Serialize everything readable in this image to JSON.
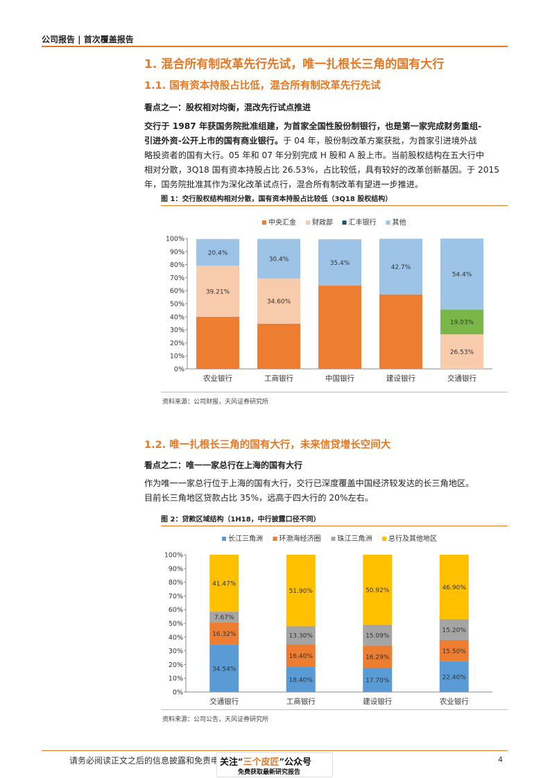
{
  "header": {
    "text": "公司报告 | 首次覆盖报告"
  },
  "section1": {
    "title": "1. 混合所有制改革先行先试，唯一扎根长三角的国有大行",
    "sub1": {
      "title": "1.1. 国有资本持股占比低，混合所有制改革先行先试",
      "point": "看点之一：股权相对均衡，混改先行试点推进",
      "lines": [
        {
          "bold": "交行于 1987 年获国务院批准组建，为首家全国性股份制银行，也是第一家完成财务重组-",
          "rest": ""
        },
        {
          "bold": "引进外资-公开上市的国有商业银行。",
          "rest": "于 04 年，股份制改革方案获批，为首家引进境外战"
        },
        {
          "bold": "",
          "rest": "略投资者的国有大行。05 年和 07 年分别完成 H 股和 A 股上市。当前股权结构在五大行中"
        },
        {
          "bold": "",
          "rest": "相对分散，3Q18 国有资本持股占比 26.53%，占比较低，具有较好的改革创新基因。于 2015"
        },
        {
          "bold": "",
          "rest": "年，国务院批准其作为深化改革试点行，混合所有制改革有望进一步推进。"
        }
      ]
    }
  },
  "figure1": {
    "title": "图 1：交行股权结构相对分散，国有资本持股占比较低（3Q18 股权结构）",
    "source": "资料来源：公司财报，天风证券研究所"
  },
  "section2": {
    "title": "1.2. 唯一扎根长三角的国有大行，未来信贷增长空间大",
    "point": "看点之二：唯一一家总行在上海的国有大行",
    "lines": [
      "作为唯一一家总行位于上海的国有大行，交行已深度覆盖中国经济较发达的长三角地区。",
      "目前长三角地区贷款占比 35%，远高于四大行的 20%左右。"
    ]
  },
  "figure2": {
    "title": "图 2：贷款区域结构（1H18，中行披露口径不同）",
    "source": "资料来源：公司公告，天风证券研究所"
  },
  "footer": {
    "disclaimer": "请务必阅读正文之后的信息披露和免责申明",
    "page": "4",
    "wm_top_a": "关注“",
    "wm_top_b": "三个皮匠",
    "wm_top_c": "”公众号",
    "wm_bottom": "免费获取最新研究报告"
  },
  "chart_data": [
    {
      "type": "bar",
      "stacked": true,
      "categories": [
        "农业银行",
        "工商银行",
        "中国银行",
        "建设银行",
        "交通银行"
      ],
      "series": [
        {
          "name": "中央汇金",
          "color": "#ed7d31",
          "values": [
            40.03,
            34.71,
            64.02,
            57.11,
            0
          ],
          "labels": [
            "",
            "",
            "",
            "",
            ""
          ]
        },
        {
          "name": "财政部",
          "color": "#f8cbad",
          "values": [
            39.21,
            34.6,
            0,
            0,
            26.53
          ],
          "labels": [
            "39.21%",
            "34.60%",
            "",
            "",
            "26.53%"
          ]
        },
        {
          "name": "汇丰银行",
          "color": "#7ab648",
          "values": [
            0,
            0,
            0,
            0,
            19.03
          ],
          "labels": [
            "",
            "",
            "",
            "",
            "19.03%"
          ]
        },
        {
          "name": "其他",
          "color": "#9dc3e6",
          "values": [
            20.4,
            30.4,
            35.4,
            42.7,
            54.4
          ],
          "labels": [
            "20.4%",
            "30.4%",
            "35.4%",
            "42.7%",
            "54.4%"
          ]
        }
      ],
      "legend": [
        {
          "name": "中央汇金",
          "color": "#ed7d31"
        },
        {
          "name": "财政部",
          "color": "#f8cbad"
        },
        {
          "name": "汇丰银行",
          "color": "#1f4e79"
        },
        {
          "name": "其他",
          "color": "#9dc3e6"
        }
      ],
      "yticks": [
        "0%",
        "10%",
        "20%",
        "30%",
        "40%",
        "50%",
        "60%",
        "70%",
        "80%",
        "90%",
        "100%"
      ],
      "ylim": [
        0,
        100
      ],
      "legend_position": "top"
    },
    {
      "type": "bar",
      "stacked": true,
      "categories": [
        "交通银行",
        "工商银行",
        "建设银行",
        "农业银行"
      ],
      "series": [
        {
          "name": "长江三角洲",
          "color": "#5b9bd5",
          "values": [
            34.54,
            18.4,
            17.7,
            22.4
          ],
          "labels": [
            "34.54%",
            "18.40%",
            "17.70%",
            "22.40%"
          ]
        },
        {
          "name": "环渤海经济圈",
          "color": "#ed7d31",
          "values": [
            16.32,
            16.4,
            16.29,
            15.5
          ],
          "labels": [
            "16.32%",
            "16.40%",
            "16.29%",
            "15.50%"
          ]
        },
        {
          "name": "珠江三角洲",
          "color": "#a5a5a5",
          "values": [
            7.67,
            13.3,
            15.09,
            15.2
          ],
          "labels": [
            "7.67%",
            "13.30%",
            "15.09%",
            "15.20%"
          ]
        },
        {
          "name": "总行及其他地区",
          "color": "#ffc000",
          "values": [
            41.47,
            51.9,
            50.92,
            46.9
          ],
          "labels": [
            "41.47%",
            "51.90%",
            "50.92%",
            "46.90%"
          ]
        }
      ],
      "yticks": [
        "0%",
        "10%",
        "20%",
        "30%",
        "40%",
        "50%",
        "60%",
        "70%",
        "80%",
        "90%",
        "100%"
      ],
      "ylim": [
        0,
        100
      ],
      "legend_position": "top"
    }
  ]
}
